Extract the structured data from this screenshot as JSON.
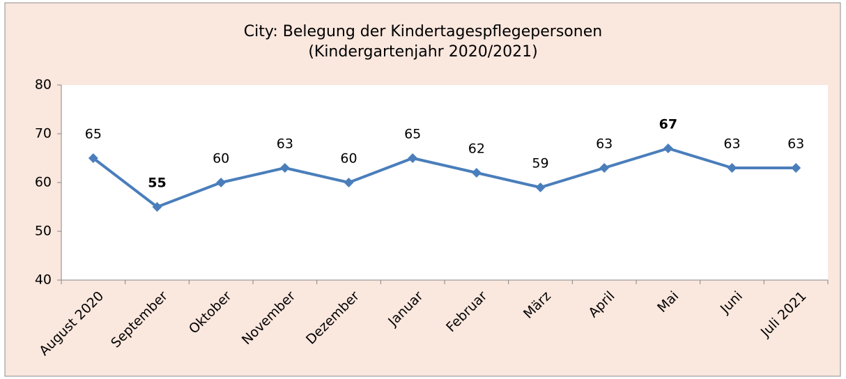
{
  "chart_data": {
    "type": "line",
    "title": "City: Belegung der Kindertagespflegepersonen",
    "subtitle": "(Kindergartenjahr 2020/2021)",
    "categories": [
      "August 2020",
      "September",
      "Oktober",
      "November",
      "Dezember",
      "Januar",
      "Februar",
      "März",
      "April",
      "Mai",
      "Juni",
      "Juli 2021"
    ],
    "series": [
      {
        "name": "Belegung",
        "color": "#4a7ebb",
        "values": [
          65,
          55,
          60,
          63,
          60,
          65,
          62,
          59,
          63,
          67,
          63,
          63
        ]
      }
    ],
    "label_colors": [
      "#000000",
      "#00a050",
      "#000000",
      "#000000",
      "#000000",
      "#000000",
      "#000000",
      "#000000",
      "#000000",
      "#ff0000",
      "#000000",
      "#000000"
    ],
    "ylim": [
      40,
      80
    ],
    "yticks": [
      40,
      50,
      60,
      70,
      80
    ],
    "grid": false
  }
}
